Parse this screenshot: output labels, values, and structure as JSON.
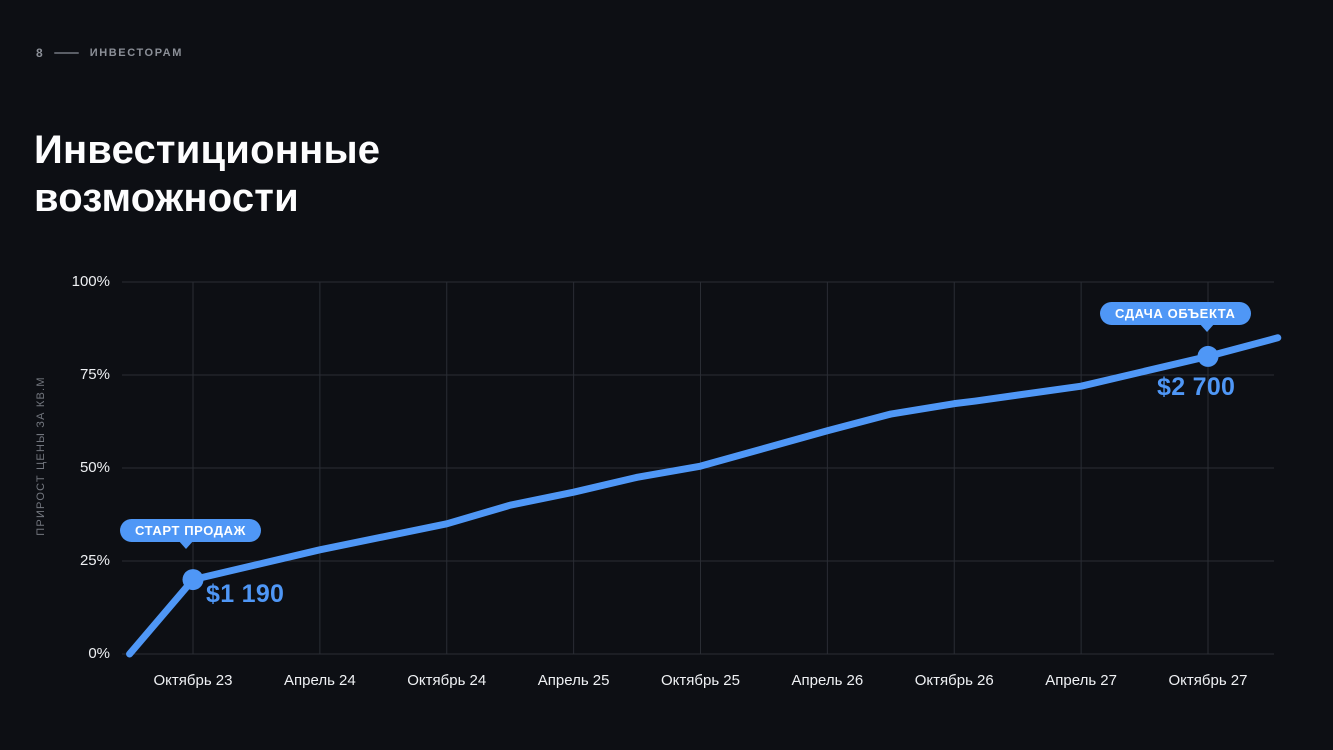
{
  "page": {
    "background": "#0d0f14",
    "accent": "#4f97f6",
    "grid_color": "#2a2d34"
  },
  "header": {
    "page_number": "8",
    "section": "ИНВЕСТОРАМ"
  },
  "title": "Инвестиционные возможности",
  "chart_data": {
    "type": "line",
    "title": "",
    "xlabel": "",
    "ylabel": "ПРИРОСТ ЦЕНЫ ЗА КВ.М",
    "ylim": [
      0,
      100
    ],
    "grid": true,
    "line_color": "#4f97f6",
    "y_ticks": [
      {
        "label": "0%",
        "value": 0
      },
      {
        "label": "25%",
        "value": 25
      },
      {
        "label": "50%",
        "value": 50
      },
      {
        "label": "75%",
        "value": 75
      },
      {
        "label": "100%",
        "value": 100
      }
    ],
    "x_tick_labels": [
      "Октябрь 23",
      "Апрель 24",
      "Октябрь 24",
      "Апрель 25",
      "Октябрь 25",
      "Апрель 26",
      "Октябрь 26",
      "Апрель 27",
      "Октябрь 27"
    ],
    "x_tick_step_months": 6,
    "series": [
      {
        "name": "Прирост цены за кв.м, %",
        "points_t_pct": [
          [
            -3,
            0
          ],
          [
            0,
            20
          ],
          [
            6,
            28
          ],
          [
            12,
            35
          ],
          [
            15,
            40
          ],
          [
            18,
            43.5
          ],
          [
            21,
            47.5
          ],
          [
            24,
            50.5
          ],
          [
            30,
            60
          ],
          [
            33,
            64.5
          ],
          [
            36,
            67.3
          ],
          [
            37,
            68
          ],
          [
            42,
            72
          ],
          [
            48,
            80
          ],
          [
            51.3,
            85
          ]
        ]
      }
    ],
    "annotations": [
      {
        "label": "СТАРТ ПРОДАЖ",
        "value": "$1 190",
        "t": 0,
        "pct": 20
      },
      {
        "label": "СДАЧА ОБЪЕКТА",
        "value": "$2 700",
        "t": 48,
        "pct": 80
      }
    ]
  }
}
